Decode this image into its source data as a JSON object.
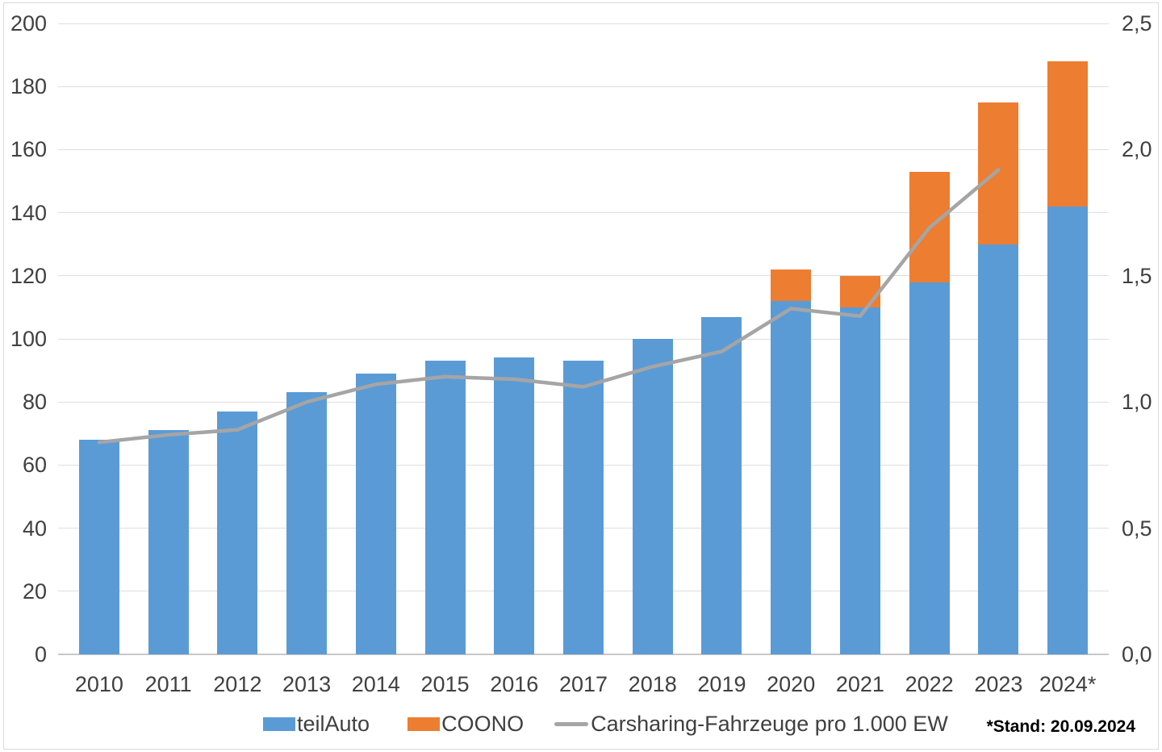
{
  "chart_data": {
    "type": "bar",
    "subtype": "stacked-bars-with-line-combo",
    "title": "",
    "categories": [
      "2010",
      "2011",
      "2012",
      "2013",
      "2014",
      "2015",
      "2016",
      "2017",
      "2018",
      "2019",
      "2020",
      "2021",
      "2022",
      "2023",
      "2024*"
    ],
    "series": [
      {
        "name": "teilAuto",
        "type": "bar",
        "axis": "left",
        "color": "#5B9BD5",
        "values": [
          68,
          71,
          77,
          83,
          89,
          93,
          94,
          93,
          100,
          107,
          112,
          110,
          118,
          130,
          142
        ]
      },
      {
        "name": "COONO",
        "type": "bar",
        "axis": "left",
        "color": "#ED7D31",
        "values": [
          0,
          0,
          0,
          0,
          0,
          0,
          0,
          0,
          0,
          0,
          10,
          10,
          35,
          45,
          46
        ]
      },
      {
        "name": "Carsharing-Fahrzeuge pro 1.000 EW",
        "type": "line",
        "axis": "right",
        "color": "#A5A5A6",
        "values": [
          0.84,
          0.87,
          0.89,
          1.0,
          1.07,
          1.1,
          1.09,
          1.06,
          1.14,
          1.2,
          1.37,
          1.34,
          1.69,
          1.92,
          null
        ]
      }
    ],
    "stacked_totals": [
      68,
      71,
      77,
      83,
      89,
      93,
      94,
      93,
      100,
      107,
      122,
      120,
      153,
      175,
      188
    ],
    "left_axis": {
      "min": 0,
      "max": 200,
      "step": 20,
      "tick_labels": [
        "0",
        "20",
        "40",
        "60",
        "80",
        "100",
        "120",
        "140",
        "160",
        "180",
        "200"
      ]
    },
    "right_axis": {
      "min": 0,
      "max": 2.5,
      "step": 0.5,
      "tick_labels": [
        "0,0",
        "0,5",
        "1,0",
        "1,5",
        "2,0",
        "2,5"
      ]
    },
    "grid": true,
    "legend_position": "bottom",
    "footnote": "*Stand: 20.09.2024",
    "colors": {
      "grid": "#DEDEDE",
      "axis_line": "#C8C8C8",
      "text": "#404040"
    }
  }
}
